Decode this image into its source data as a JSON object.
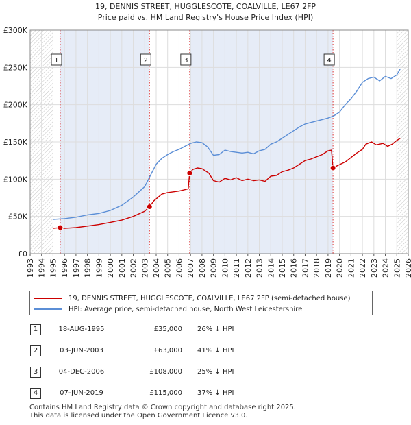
{
  "chart_data": {
    "type": "line",
    "title_line1": "19, DENNIS STREET, HUGGLESCOTE, COALVILLE, LE67 2FP",
    "title_line2": "Price paid vs. HM Land Registry's House Price Index (HPI)",
    "xlabel": "",
    "ylabel": "",
    "xlim": [
      1993,
      2026
    ],
    "ylim": [
      0,
      300000
    ],
    "x_ticks": [
      "1993",
      "1994",
      "1995",
      "1996",
      "1997",
      "1998",
      "1999",
      "2000",
      "2001",
      "2002",
      "2003",
      "2004",
      "2005",
      "2006",
      "2007",
      "2008",
      "2009",
      "2010",
      "2011",
      "2012",
      "2013",
      "2014",
      "2015",
      "2016",
      "2017",
      "2018",
      "2019",
      "2020",
      "2021",
      "2022",
      "2023",
      "2024",
      "2025",
      "2026"
    ],
    "y_ticks": [
      {
        "value": 0,
        "label": "£0"
      },
      {
        "value": 50000,
        "label": "£50K"
      },
      {
        "value": 100000,
        "label": "£100K"
      },
      {
        "value": 150000,
        "label": "£150K"
      },
      {
        "value": 200000,
        "label": "£200K"
      },
      {
        "value": 250000,
        "label": "£250K"
      },
      {
        "value": 300000,
        "label": "£300K"
      }
    ],
    "grid": true,
    "hatched_ranges": [
      [
        1993,
        1995.0
      ],
      [
        2025.0,
        2026
      ]
    ],
    "shaded_ranges": [
      [
        1995.63,
        2003.42
      ],
      [
        2006.92,
        2019.43
      ]
    ],
    "series": [
      {
        "name": "19, DENNIS STREET, HUGGLESCOTE, COALVILLE, LE67 2FP (semi-detached house)",
        "color": "#cc0000",
        "x": [
          1995.0,
          1995.63,
          1996.0,
          1997.0,
          1998.0,
          1999.0,
          2000.0,
          2001.0,
          2002.0,
          2003.0,
          2003.42,
          2003.8,
          2004.5,
          2005.0,
          2006.0,
          2006.8,
          2006.92,
          2007.2,
          2007.6,
          2008.0,
          2008.6,
          2009.0,
          2009.5,
          2010.0,
          2010.5,
          2011.0,
          2011.5,
          2012.0,
          2012.5,
          2013.0,
          2013.5,
          2014.0,
          2014.5,
          2015.0,
          2015.5,
          2016.0,
          2016.5,
          2017.0,
          2017.5,
          2018.0,
          2018.5,
          2019.0,
          2019.3,
          2019.43,
          2019.8,
          2020.5,
          2021.0,
          2021.5,
          2022.0,
          2022.3,
          2022.8,
          2023.2,
          2023.8,
          2024.2,
          2024.6,
          2025.0,
          2025.3
        ],
        "y": [
          34000,
          35000,
          34000,
          35000,
          37000,
          39000,
          42000,
          45000,
          50000,
          57000,
          63000,
          71000,
          80000,
          82000,
          84000,
          87000,
          108000,
          113000,
          115000,
          114000,
          108000,
          98000,
          96000,
          101000,
          99000,
          102000,
          98000,
          100000,
          98000,
          99000,
          97000,
          104000,
          105000,
          110000,
          112000,
          115000,
          120000,
          125000,
          127000,
          130000,
          133000,
          138000,
          139000,
          115000,
          118000,
          123000,
          129000,
          135000,
          140000,
          147000,
          150000,
          146000,
          148000,
          144000,
          147000,
          152000,
          155000
        ]
      },
      {
        "name": "HPI: Average price, semi-detached house, North West Leicestershire",
        "color": "#5b8ed6",
        "x": [
          1995.0,
          1996.0,
          1997.0,
          1998.0,
          1999.0,
          2000.0,
          2001.0,
          2002.0,
          2003.0,
          2003.5,
          2004.0,
          2004.5,
          2005.0,
          2005.5,
          2006.0,
          2006.5,
          2007.0,
          2007.5,
          2008.0,
          2008.5,
          2009.0,
          2009.5,
          2010.0,
          2010.5,
          2011.0,
          2011.5,
          2012.0,
          2012.5,
          2013.0,
          2013.5,
          2014.0,
          2014.5,
          2015.0,
          2015.5,
          2016.0,
          2016.5,
          2017.0,
          2017.5,
          2018.0,
          2018.5,
          2019.0,
          2019.5,
          2020.0,
          2020.5,
          2021.0,
          2021.5,
          2022.0,
          2022.5,
          2023.0,
          2023.5,
          2024.0,
          2024.5,
          2025.0,
          2025.3
        ],
        "y": [
          46000,
          47000,
          49000,
          52000,
          54000,
          58000,
          65000,
          76000,
          90000,
          105000,
          120000,
          128000,
          133000,
          137000,
          140000,
          144000,
          148000,
          150000,
          149000,
          143000,
          132000,
          133000,
          139000,
          137000,
          136000,
          135000,
          136000,
          134000,
          138000,
          140000,
          147000,
          150000,
          155000,
          160000,
          165000,
          170000,
          174000,
          176000,
          178000,
          180000,
          182000,
          185000,
          190000,
          200000,
          208000,
          218000,
          230000,
          235000,
          237000,
          232000,
          238000,
          235000,
          240000,
          248000
        ]
      }
    ],
    "markers": [
      {
        "label": "1",
        "x": 1995.63,
        "y": 35000
      },
      {
        "label": "2",
        "x": 2003.42,
        "y": 63000
      },
      {
        "label": "3",
        "x": 2006.92,
        "y": 108000
      },
      {
        "label": "4",
        "x": 2019.43,
        "y": 115000
      }
    ]
  },
  "legend": {
    "items": [
      {
        "label": "19, DENNIS STREET, HUGGLESCOTE, COALVILLE, LE67 2FP (semi-detached house)",
        "color": "#cc0000"
      },
      {
        "label": "HPI: Average price, semi-detached house, North West Leicestershire",
        "color": "#5b8ed6"
      }
    ]
  },
  "sales": [
    {
      "num": "1",
      "date": "18-AUG-1995",
      "price": "£35,000",
      "hpi": "26% ↓ HPI"
    },
    {
      "num": "2",
      "date": "03-JUN-2003",
      "price": "£63,000",
      "hpi": "41% ↓ HPI"
    },
    {
      "num": "3",
      "date": "04-DEC-2006",
      "price": "£108,000",
      "hpi": "25% ↓ HPI"
    },
    {
      "num": "4",
      "date": "07-JUN-2019",
      "price": "£115,000",
      "hpi": "37% ↓ HPI"
    }
  ],
  "footer": {
    "line1": "Contains HM Land Registry data © Crown copyright and database right 2025.",
    "line2": "This data is licensed under the Open Government Licence v3.0."
  }
}
